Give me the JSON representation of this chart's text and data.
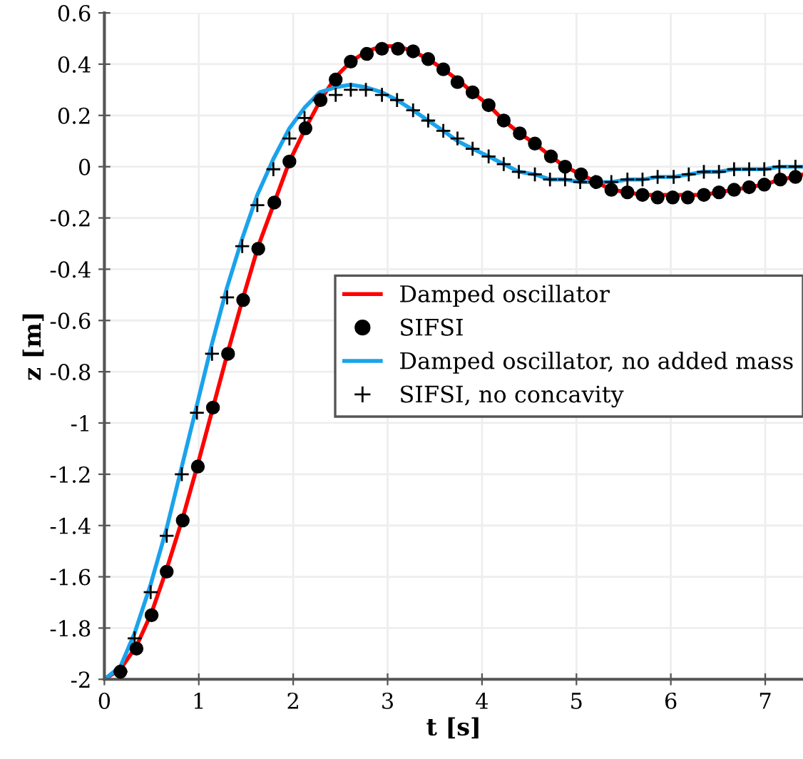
{
  "chart_data": {
    "type": "line",
    "xlabel": "t [s]",
    "ylabel": "z [m]",
    "xlim": [
      0,
      7.4
    ],
    "ylim": [
      -2,
      0.6
    ],
    "xticks": [
      0,
      1,
      2,
      3,
      4,
      5,
      6,
      7
    ],
    "yticks": [
      0.6,
      0.4,
      0.2,
      0,
      -0.2,
      -0.4,
      -0.6,
      -0.8,
      -1,
      -1.2,
      -1.4,
      -1.6,
      -1.8,
      -2
    ],
    "grid": true,
    "legend": "center right",
    "series": [
      {
        "name": "Damped oscillator",
        "color": "#ff0000",
        "marker": "none",
        "x": [
          0,
          0.17,
          0.34,
          0.5,
          0.66,
          0.83,
          0.99,
          1.15,
          1.31,
          1.47,
          1.63,
          1.8,
          1.96,
          2.13,
          2.29,
          2.45,
          2.61,
          2.78,
          2.94,
          3.11,
          3.27,
          3.43,
          3.59,
          3.74,
          3.9,
          4.07,
          4.23,
          4.4,
          4.56,
          4.73,
          4.88,
          5.05,
          5.21,
          5.37,
          5.54,
          5.7,
          5.86,
          6.02,
          6.18,
          6.35,
          6.51,
          6.67,
          6.83,
          6.99,
          7.16,
          7.32,
          7.4
        ],
        "values": [
          -2,
          -1.96,
          -1.87,
          -1.74,
          -1.57,
          -1.37,
          -1.16,
          -0.94,
          -0.72,
          -0.51,
          -0.31,
          -0.14,
          0.02,
          0.15,
          0.26,
          0.35,
          0.41,
          0.45,
          0.47,
          0.47,
          0.45,
          0.42,
          0.38,
          0.34,
          0.29,
          0.24,
          0.18,
          0.13,
          0.09,
          0.04,
          0,
          -0.03,
          -0.06,
          -0.09,
          -0.1,
          -0.11,
          -0.11,
          -0.11,
          -0.11,
          -0.11,
          -0.1,
          -0.09,
          -0.08,
          -0.07,
          -0.05,
          -0.04,
          -0.03
        ]
      },
      {
        "name": "SIFSI",
        "type": "scatter",
        "color": "#000000",
        "marker": "circle",
        "x": [
          0.17,
          0.34,
          0.5,
          0.66,
          0.83,
          0.99,
          1.15,
          1.31,
          1.47,
          1.63,
          1.8,
          1.96,
          2.13,
          2.29,
          2.45,
          2.61,
          2.78,
          2.94,
          3.11,
          3.27,
          3.43,
          3.59,
          3.74,
          3.9,
          4.07,
          4.23,
          4.4,
          4.56,
          4.73,
          4.88,
          5.05,
          5.21,
          5.37,
          5.54,
          5.7,
          5.86,
          6.02,
          6.18,
          6.35,
          6.51,
          6.67,
          6.83,
          6.99,
          7.16,
          7.32
        ],
        "values": [
          -1.97,
          -1.88,
          -1.75,
          -1.58,
          -1.38,
          -1.17,
          -0.94,
          -0.73,
          -0.52,
          -0.32,
          -0.14,
          0.02,
          0.15,
          0.26,
          0.34,
          0.41,
          0.44,
          0.46,
          0.46,
          0.45,
          0.42,
          0.38,
          0.33,
          0.29,
          0.24,
          0.18,
          0.13,
          0.09,
          0.04,
          0,
          -0.03,
          -0.06,
          -0.09,
          -0.1,
          -0.11,
          -0.12,
          -0.12,
          -0.12,
          -0.11,
          -0.1,
          -0.09,
          -0.08,
          -0.07,
          -0.05,
          -0.04
        ]
      },
      {
        "name": "Damped oscillator, no added mass",
        "color": "#1aa3ec",
        "marker": "none",
        "x": [
          0,
          0.17,
          0.32,
          0.49,
          0.66,
          0.82,
          0.98,
          1.14,
          1.3,
          1.46,
          1.62,
          1.79,
          1.96,
          2.12,
          2.28,
          2.45,
          2.61,
          2.77,
          2.94,
          3.1,
          3.27,
          3.43,
          3.59,
          3.74,
          3.9,
          4.07,
          4.23,
          4.39,
          4.56,
          4.72,
          4.88,
          5.04,
          5.2,
          5.37,
          5.54,
          5.7,
          5.86,
          6.03,
          6.19,
          6.35,
          6.51,
          6.67,
          6.83,
          6.99,
          7.15,
          7.32,
          7.4
        ],
        "values": [
          -2,
          -1.95,
          -1.82,
          -1.63,
          -1.41,
          -1.17,
          -0.93,
          -0.69,
          -0.47,
          -0.28,
          -0.11,
          0.03,
          0.15,
          0.23,
          0.29,
          0.31,
          0.32,
          0.31,
          0.29,
          0.26,
          0.22,
          0.18,
          0.14,
          0.1,
          0.07,
          0.04,
          0.01,
          -0.02,
          -0.03,
          -0.05,
          -0.05,
          -0.06,
          -0.06,
          -0.06,
          -0.05,
          -0.05,
          -0.04,
          -0.04,
          -0.03,
          -0.02,
          -0.02,
          -0.01,
          -0.01,
          -0.01,
          0,
          0,
          0
        ]
      },
      {
        "name": "SIFSI, no concavity",
        "type": "scatter",
        "color": "#000000",
        "marker": "cross",
        "x": [
          0.17,
          0.32,
          0.49,
          0.66,
          0.82,
          0.98,
          1.14,
          1.3,
          1.46,
          1.62,
          1.79,
          1.96,
          2.12,
          2.28,
          2.45,
          2.61,
          2.77,
          2.94,
          3.1,
          3.27,
          3.43,
          3.59,
          3.74,
          3.9,
          4.07,
          4.23,
          4.39,
          4.56,
          4.72,
          4.88,
          5.04,
          5.2,
          5.37,
          5.54,
          5.7,
          5.86,
          6.03,
          6.19,
          6.35,
          6.51,
          6.67,
          6.83,
          6.99,
          7.15,
          7.32
        ],
        "values": [
          -1.97,
          -1.84,
          -1.66,
          -1.44,
          -1.2,
          -0.96,
          -0.73,
          -0.51,
          -0.31,
          -0.15,
          -0.01,
          0.11,
          0.19,
          0.26,
          0.28,
          0.3,
          0.3,
          0.28,
          0.26,
          0.22,
          0.18,
          0.14,
          0.11,
          0.07,
          0.04,
          0.01,
          -0.02,
          -0.03,
          -0.05,
          -0.05,
          -0.06,
          -0.06,
          -0.06,
          -0.05,
          -0.05,
          -0.04,
          -0.04,
          -0.03,
          -0.02,
          -0.02,
          -0.01,
          -0.01,
          -0.01,
          0,
          0
        ]
      }
    ]
  }
}
